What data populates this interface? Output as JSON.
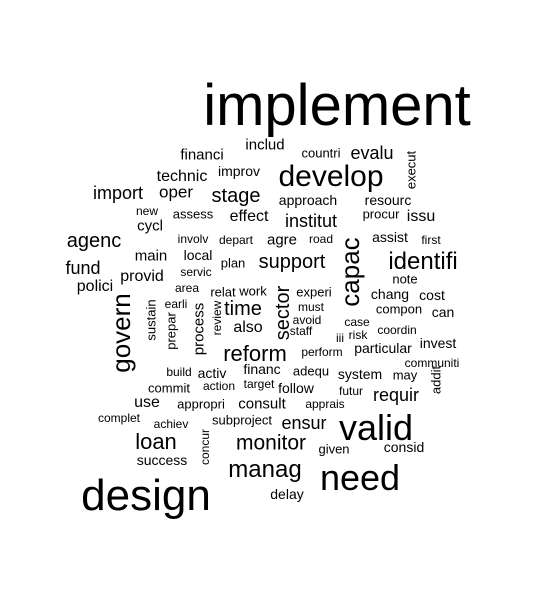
{
  "words": {
    "implement": "implement",
    "design": "design",
    "need": "need",
    "valid": "valid",
    "develop": "develop",
    "govern": "govern",
    "capac": "capac",
    "identifi": "identifi",
    "manag": "manag",
    "reform": "reform",
    "loan": "loan",
    "monitor": "monitor",
    "support": "support",
    "sector": "sector",
    "stage": "stage",
    "institut": "institut",
    "agenc": "agenc",
    "time": "time",
    "requir": "requir",
    "ensur": "ensur",
    "fund": "fund",
    "evalu": "evalu",
    "import": "import",
    "oper": "oper",
    "technic": "technic",
    "financi": "financi",
    "includ": "includ",
    "improv": "improv",
    "countri": "countri",
    "execut": "execut",
    "approach": "approach",
    "resourc": "resourc",
    "procur": "procur",
    "issu": "issu",
    "effect": "effect",
    "assess": "assess",
    "new": "new",
    "cycl": "cycl",
    "involv": "involv",
    "depart": "depart",
    "agre": "agre",
    "road": "road",
    "assist": "assist",
    "first": "first",
    "main": "main",
    "local": "local",
    "servic": "servic",
    "plan": "plan",
    "provid": "provid",
    "polici": "polici",
    "area": "area",
    "relat": "relat",
    "work": "work",
    "experi": "experi",
    "must": "must",
    "avoid": "avoid",
    "staff": "staff",
    "note": "note",
    "chang": "chang",
    "cost": "cost",
    "compon": "compon",
    "can": "can",
    "case": "case",
    "risk": "risk",
    "coordin": "coordin",
    "iii": "iii",
    "sustain": "sustain",
    "earli": "earli",
    "prepar": "prepar",
    "process": "process",
    "review": "review",
    "also": "also",
    "perform": "perform",
    "particular": "particular",
    "invest": "invest",
    "communiti": "communiti",
    "build": "build",
    "activ": "activ",
    "financ": "financ",
    "adequ": "adequ",
    "system": "system",
    "may": "may",
    "addit": "addit",
    "commit": "commit",
    "action": "action",
    "target": "target",
    "follow": "follow",
    "futur": "futur",
    "use": "use",
    "appropri": "appropri",
    "consult": "consult",
    "apprais": "apprais",
    "complet": "complet",
    "achiev": "achiev",
    "subproject": "subproject",
    "concur": "concur",
    "given": "given",
    "consid": "consid",
    "success": "success",
    "delay": "delay"
  }
}
